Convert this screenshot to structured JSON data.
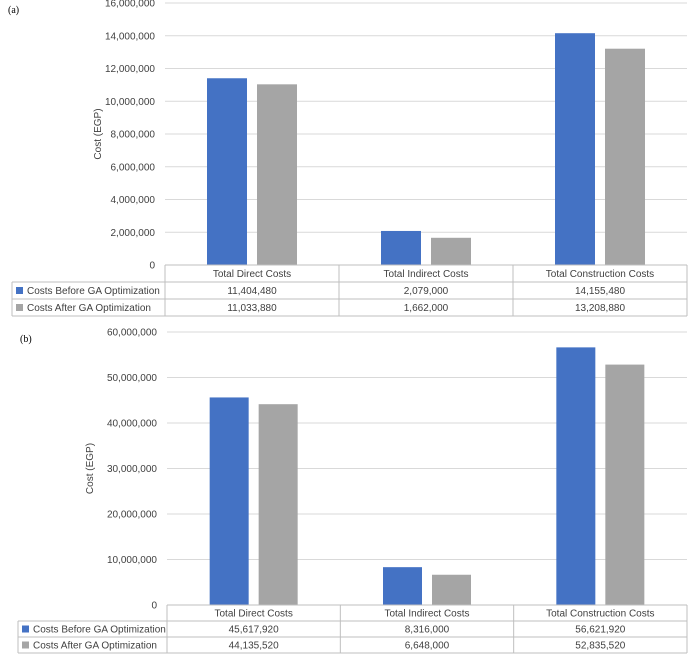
{
  "chart_data": [
    {
      "panel_label": "(a)",
      "type": "bar",
      "ylabel": "Cost (EGP)",
      "ylim": [
        0,
        16000000
      ],
      "y_ticks": [
        0,
        2000000,
        4000000,
        6000000,
        8000000,
        10000000,
        12000000,
        14000000,
        16000000
      ],
      "y_tick_labels": [
        "0",
        "2,000,000",
        "4,000,000",
        "6,000,000",
        "8,000,000",
        "10,000,000",
        "12,000,000",
        "14,000,000",
        "16,000,000"
      ],
      "categories": [
        "Total Direct Costs",
        "Total Indirect Costs",
        "Total Construction Costs"
      ],
      "series": [
        {
          "name": "Costs Before GA Optimization",
          "color": "#4472c4",
          "values": [
            11404480,
            2079000,
            14155480
          ],
          "labels": [
            "11,404,480",
            "2,079,000",
            "14,155,480"
          ]
        },
        {
          "name": "Costs After GA Optimization",
          "color": "#a5a5a5",
          "values": [
            11033880,
            1662000,
            13208880
          ],
          "labels": [
            "11,033,880",
            "1,662,000",
            "13,208,880"
          ]
        }
      ],
      "grid": true,
      "legend": "data-table"
    },
    {
      "panel_label": "(b)",
      "type": "bar",
      "ylabel": "Cost (EGP)",
      "ylim": [
        0,
        60000000
      ],
      "y_ticks": [
        0,
        10000000,
        20000000,
        30000000,
        40000000,
        50000000,
        60000000
      ],
      "y_tick_labels": [
        "0",
        "10,000,000",
        "20,000,000",
        "30,000,000",
        "40,000,000",
        "50,000,000",
        "60,000,000"
      ],
      "categories": [
        "Total Direct Costs",
        "Total Indirect Costs",
        "Total Construction Costs"
      ],
      "series": [
        {
          "name": "Costs Before GA Optimization",
          "color": "#4472c4",
          "values": [
            45617920,
            8316000,
            56621920
          ],
          "labels": [
            "45,617,920",
            "8,316,000",
            "56,621,920"
          ]
        },
        {
          "name": "Costs After GA Optimization",
          "color": "#a5a5a5",
          "values": [
            44135520,
            6648000,
            52835520
          ],
          "labels": [
            "44,135,520",
            "6,648,000",
            "52,835,520"
          ]
        }
      ],
      "grid": true,
      "legend": "data-table"
    }
  ]
}
